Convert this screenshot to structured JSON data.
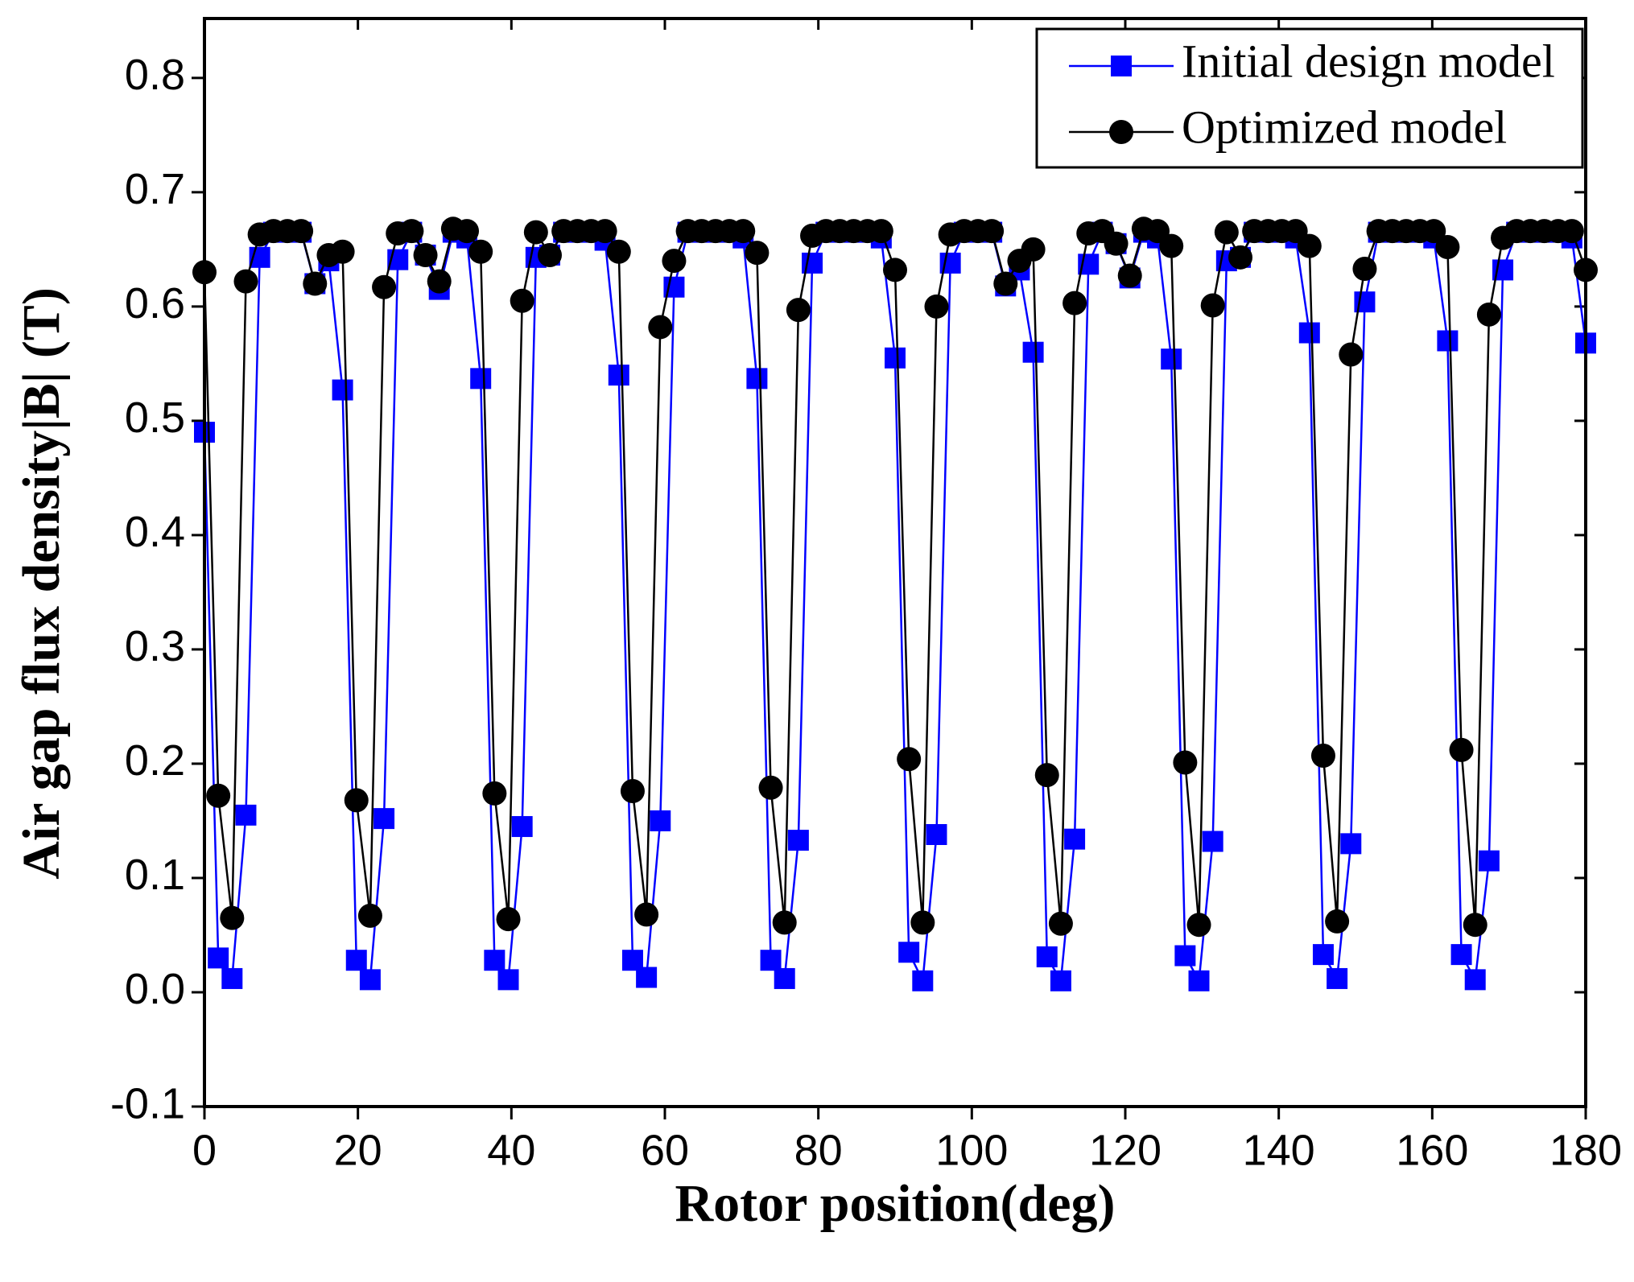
{
  "chart_data": {
    "type": "line",
    "xlabel": "Rotor position(deg)",
    "ylabel": "Air gap flux density|B| (T)",
    "x": [
      0,
      1.8,
      3.6,
      5.4,
      7.2,
      9,
      10.8,
      12.6,
      14.4,
      16.2,
      18,
      19.8,
      21.6,
      23.4,
      25.2,
      27,
      28.8,
      30.6,
      32.4,
      34.2,
      36,
      37.8,
      39.6,
      41.4,
      43.2,
      45,
      46.8,
      48.6,
      50.4,
      52.2,
      54,
      55.8,
      57.6,
      59.4,
      61.2,
      63,
      64.8,
      66.6,
      68.4,
      70.2,
      72,
      73.8,
      75.6,
      77.4,
      79.2,
      81,
      82.8,
      84.6,
      86.4,
      88.2,
      90,
      91.8,
      93.6,
      95.4,
      97.2,
      99,
      100.8,
      102.6,
      104.4,
      106.2,
      108,
      109.8,
      111.6,
      113.4,
      115.2,
      117,
      118.8,
      120.6,
      122.4,
      124.2,
      126,
      127.8,
      129.6,
      131.4,
      133.2,
      135,
      136.8,
      138.6,
      140.4,
      142.2,
      144,
      145.8,
      147.6,
      149.4,
      151.2,
      153,
      154.8,
      156.6,
      158.4,
      160.2,
      162,
      163.8,
      165.6,
      167.4,
      169.2,
      171,
      172.8,
      174.6,
      176.4,
      178.2,
      180
    ],
    "series": [
      {
        "name": "Initial design model",
        "color": "#0000ff",
        "marker": "square",
        "line_color": "#0000ff",
        "values": [
          0.49,
          0.03,
          0.012,
          0.155,
          0.643,
          0.665,
          0.665,
          0.665,
          0.62,
          0.64,
          0.527,
          0.028,
          0.011,
          0.152,
          0.641,
          0.665,
          0.645,
          0.615,
          0.665,
          0.66,
          0.537,
          0.028,
          0.011,
          0.145,
          0.643,
          0.645,
          0.665,
          0.665,
          0.665,
          0.658,
          0.54,
          0.028,
          0.013,
          0.15,
          0.617,
          0.665,
          0.665,
          0.665,
          0.665,
          0.66,
          0.537,
          0.028,
          0.012,
          0.133,
          0.638,
          0.665,
          0.665,
          0.665,
          0.665,
          0.66,
          0.555,
          0.035,
          0.01,
          0.138,
          0.638,
          0.665,
          0.665,
          0.665,
          0.618,
          0.632,
          0.56,
          0.031,
          0.01,
          0.134,
          0.637,
          0.665,
          0.655,
          0.625,
          0.665,
          0.66,
          0.554,
          0.032,
          0.01,
          0.132,
          0.64,
          0.643,
          0.665,
          0.665,
          0.665,
          0.66,
          0.577,
          0.033,
          0.012,
          0.13,
          0.604,
          0.665,
          0.665,
          0.665,
          0.665,
          0.66,
          0.57,
          0.033,
          0.011,
          0.115,
          0.632,
          0.665,
          0.665,
          0.665,
          0.665,
          0.66,
          0.568
        ]
      },
      {
        "name": "Optimized model",
        "color": "#000000",
        "marker": "circle",
        "line_color": "#000000",
        "values": [
          0.63,
          0.172,
          0.065,
          0.622,
          0.663,
          0.666,
          0.666,
          0.666,
          0.62,
          0.645,
          0.648,
          0.168,
          0.067,
          0.617,
          0.664,
          0.666,
          0.645,
          0.622,
          0.668,
          0.666,
          0.648,
          0.174,
          0.064,
          0.605,
          0.665,
          0.645,
          0.666,
          0.666,
          0.666,
          0.666,
          0.648,
          0.176,
          0.068,
          0.582,
          0.64,
          0.666,
          0.666,
          0.666,
          0.666,
          0.666,
          0.647,
          0.179,
          0.061,
          0.597,
          0.662,
          0.666,
          0.666,
          0.666,
          0.666,
          0.666,
          0.632,
          0.204,
          0.061,
          0.6,
          0.663,
          0.666,
          0.666,
          0.666,
          0.62,
          0.64,
          0.65,
          0.19,
          0.06,
          0.603,
          0.664,
          0.666,
          0.655,
          0.627,
          0.668,
          0.666,
          0.653,
          0.201,
          0.059,
          0.601,
          0.665,
          0.643,
          0.666,
          0.666,
          0.666,
          0.666,
          0.653,
          0.207,
          0.062,
          0.558,
          0.633,
          0.666,
          0.666,
          0.666,
          0.666,
          0.666,
          0.652,
          0.212,
          0.059,
          0.593,
          0.66,
          0.666,
          0.666,
          0.666,
          0.666,
          0.666,
          0.632
        ]
      }
    ],
    "xlim": [
      0,
      180
    ],
    "xticks": [
      0,
      20,
      40,
      60,
      80,
      100,
      120,
      140,
      160,
      180
    ],
    "ylim": [
      -0.1,
      0.852
    ],
    "yticks": [
      -0.1,
      {
        "value": 0,
        "label": "0.0"
      },
      0.1,
      0.2,
      0.3,
      0.4,
      0.5,
      0.6,
      0.7,
      0.8
    ],
    "legend": "top-right"
  }
}
